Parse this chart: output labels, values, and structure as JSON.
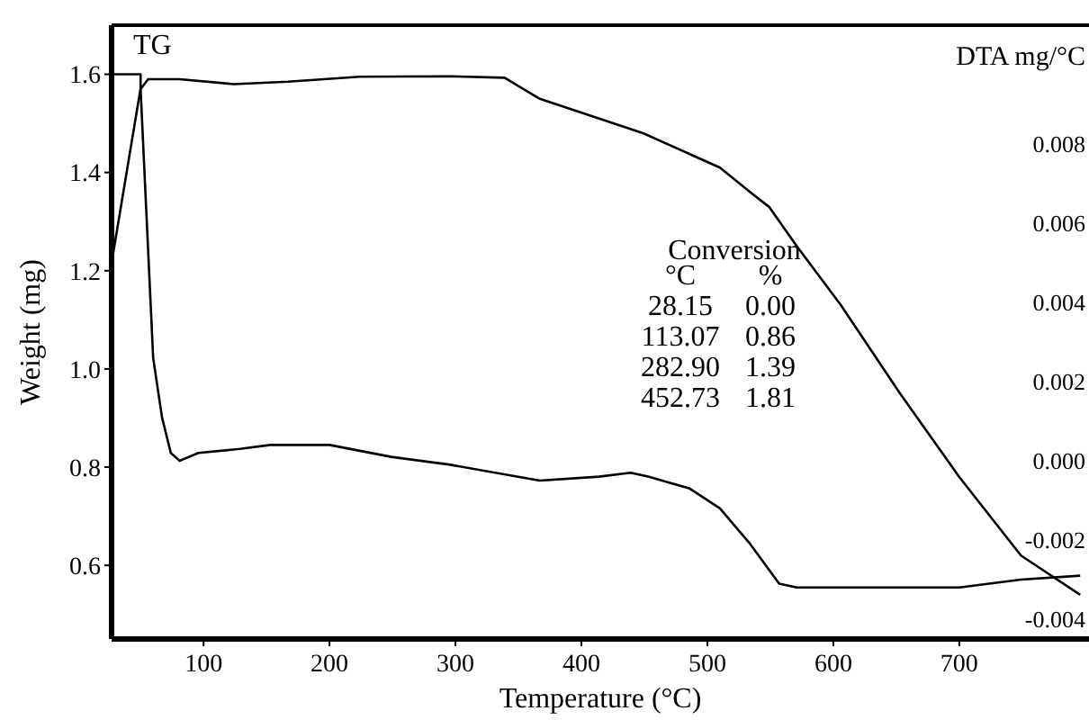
{
  "chart_data": {
    "type": "line",
    "xlabel": "Temperature (°C)",
    "ylabel": "Weight (mg)",
    "y2label": "DTA mg/°C",
    "xlim": [
      27,
      803
    ],
    "xticks": [
      100,
      200,
      300,
      400,
      500,
      600,
      700
    ],
    "ylim": [
      0.45,
      1.7
    ],
    "yticks": [
      0.6,
      0.8,
      {
        "value": 1.0,
        "label": "1.0"
      },
      1.2,
      1.4,
      1.6
    ],
    "y2lim": [
      -0.0045,
      0.011
    ],
    "y2ticks": [
      {
        "value": 0.008,
        "label": "0.008"
      },
      {
        "value": 0.006,
        "label": "0.006"
      },
      {
        "value": 0.004,
        "label": "0.004"
      },
      {
        "value": 0.002,
        "label": "0.002"
      },
      {
        "value": 0,
        "label": "0.000"
      },
      {
        "value": -0.002,
        "label": "-0.002"
      },
      {
        "value": -0.004,
        "label": "-0.004"
      }
    ],
    "marker": "none",
    "line_style": "solid",
    "series": [
      {
        "name": "TG",
        "color": "#000000",
        "x": [
          27,
          50,
          50,
          56,
          81,
          124,
          167,
          224,
          296,
          339,
          367,
          449,
          510,
          534,
          549,
          571,
          606,
          653,
          700,
          749,
          796
        ],
        "values": [
          1.6,
          1.6,
          1.57,
          1.59,
          1.59,
          1.58,
          1.585,
          1.595,
          1.596,
          1.593,
          1.55,
          1.48,
          1.41,
          1.36,
          1.33,
          1.25,
          1.13,
          0.95,
          0.78,
          0.62,
          0.54
        ]
      },
      {
        "color": "#000000",
        "axis": "y2",
        "x": [
          27,
          50,
          60,
          67,
          74,
          81,
          96,
          129,
          153,
          200,
          249,
          296,
          367,
          414,
          439,
          453,
          486,
          510,
          534,
          557,
          571,
          606,
          700,
          749,
          796
        ],
        "values": [
          0.005,
          0.0094,
          0.0026,
          0.0011,
          0.0002,
          0,
          0.0002,
          0.0003,
          0.0004,
          0.0004,
          0.0001,
          -0.0001,
          -0.0005,
          -0.0004,
          -0.0003,
          -0.0004,
          -0.0007,
          -0.0012,
          -0.0021,
          -0.0031,
          -0.0032,
          -0.0032,
          -0.0032,
          -0.003,
          -0.0029
        ]
      }
    ],
    "annotations": [
      "Conversion",
      "°C",
      "%",
      "28.15",
      "0.00",
      "113.07",
      "0.86",
      "282.90",
      "1.39",
      "452.73",
      "1.81"
    ]
  }
}
